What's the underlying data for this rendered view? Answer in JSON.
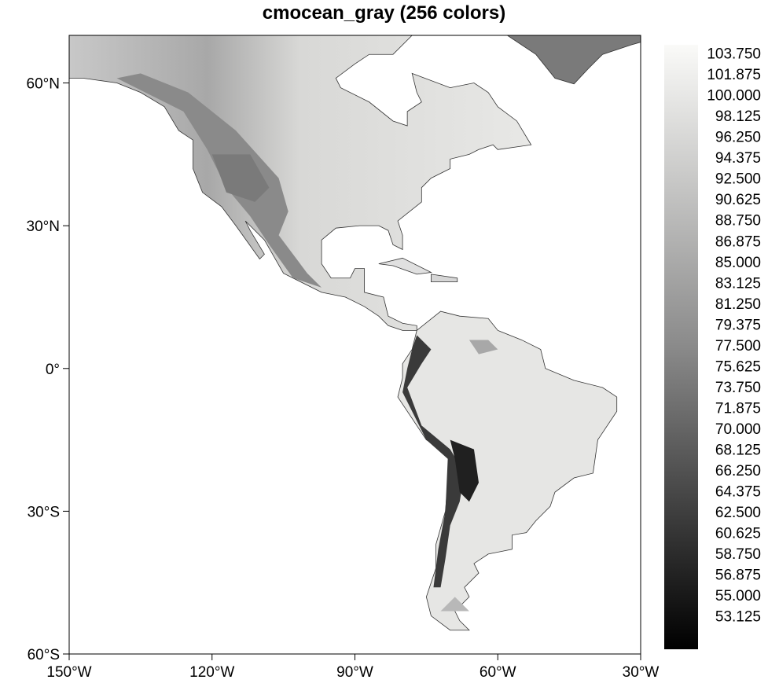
{
  "title": "cmocean_gray (256 colors)",
  "chart_data": {
    "type": "heatmap",
    "projection": "cylindrical-equidistant",
    "lon_range": [
      -150,
      -30
    ],
    "lat_range": [
      -60,
      70
    ],
    "x_ticks": [
      {
        "value": -150,
        "label": "150°W"
      },
      {
        "value": -120,
        "label": "120°W"
      },
      {
        "value": -90,
        "label": "90°W"
      },
      {
        "value": -60,
        "label": "60°W"
      },
      {
        "value": -30,
        "label": "30°W"
      }
    ],
    "y_ticks": [
      {
        "value": 60,
        "label": "60°N"
      },
      {
        "value": 30,
        "label": "30°N"
      },
      {
        "value": 0,
        "label": "0°"
      },
      {
        "value": -30,
        "label": "30°S"
      },
      {
        "value": -60,
        "label": "60°S"
      }
    ],
    "colormap": "cmocean_gray",
    "colormap_colors": 256,
    "colorbar_labels": [
      "103.750",
      "101.875",
      "100.000",
      "98.125",
      "96.250",
      "94.375",
      "92.500",
      "90.625",
      "88.750",
      "86.875",
      "85.000",
      "83.125",
      "81.250",
      "79.375",
      "77.500",
      "75.625",
      "73.750",
      "71.875",
      "70.000",
      "68.125",
      "66.250",
      "64.375",
      "62.500",
      "60.625",
      "58.750",
      "56.875",
      "55.000",
      "53.125"
    ],
    "colorbar_placement": "right",
    "ocean_color": "#ffffff",
    "colors": {
      "low": "#000000",
      "high": "#fafaf8"
    }
  }
}
